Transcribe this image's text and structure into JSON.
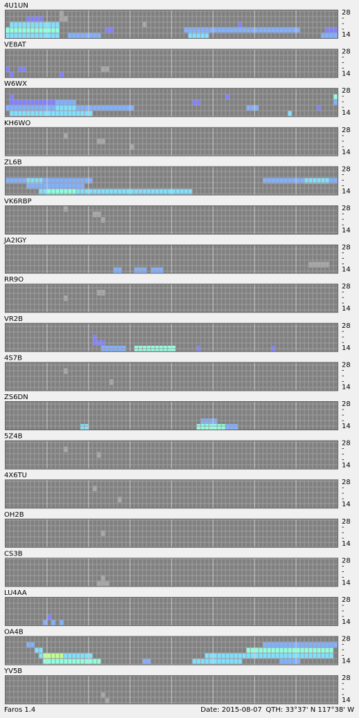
{
  "band_labels": [
    "28",
    "-",
    "-",
    "-",
    "14"
  ],
  "level_colors": [
    "#a8a8a8",
    "#8080ff",
    "#80b0ff",
    "#80e0ff",
    "#90ffe0",
    "#c0ff90"
  ],
  "stations": [
    {
      "name": "4U1UN",
      "runs": [
        [
          2,
          1,
          12,
          3
        ],
        [
          3,
          0,
          12,
          4
        ],
        [
          4,
          0,
          12,
          3
        ],
        [
          1,
          5,
          8,
          1
        ],
        [
          4,
          15,
          22,
          2
        ],
        [
          3,
          24,
          25,
          1
        ],
        [
          3,
          43,
          70,
          2
        ],
        [
          4,
          44,
          48,
          3
        ],
        [
          2,
          56,
          56,
          1
        ],
        [
          4,
          76,
          79,
          2
        ],
        [
          3,
          77,
          79,
          1
        ],
        [
          0,
          13,
          13,
          0
        ],
        [
          1,
          13,
          14,
          0
        ],
        [
          2,
          33,
          33,
          0
        ]
      ]
    },
    {
      "name": "VE8AT",
      "runs": [
        [
          3,
          0,
          0,
          1
        ],
        [
          3,
          3,
          4,
          1
        ],
        [
          4,
          1,
          1,
          1
        ],
        [
          4,
          13,
          13,
          1
        ],
        [
          3,
          23,
          24,
          0
        ]
      ]
    },
    {
      "name": "W6WX",
      "runs": [
        [
          1,
          1,
          1,
          1
        ],
        [
          2,
          1,
          12,
          1
        ],
        [
          3,
          0,
          30,
          2
        ],
        [
          4,
          1,
          20,
          3
        ],
        [
          2,
          12,
          16,
          2
        ],
        [
          3,
          12,
          16,
          3
        ],
        [
          1,
          53,
          53,
          1
        ],
        [
          2,
          45,
          46,
          1
        ],
        [
          3,
          58,
          60,
          2
        ],
        [
          4,
          68,
          68,
          3
        ],
        [
          3,
          75,
          75,
          1
        ],
        [
          1,
          79,
          79,
          4
        ],
        [
          2,
          79,
          79,
          2
        ]
      ]
    },
    {
      "name": "KH6WO",
      "runs": [
        [
          1,
          14,
          14,
          0
        ],
        [
          2,
          22,
          23,
          0
        ],
        [
          3,
          30,
          30,
          0
        ]
      ]
    },
    {
      "name": "ZL6B",
      "runs": [
        [
          2,
          0,
          20,
          2
        ],
        [
          2,
          5,
          8,
          3
        ],
        [
          3,
          5,
          18,
          2
        ],
        [
          4,
          8,
          44,
          3
        ],
        [
          4,
          10,
          16,
          4
        ],
        [
          2,
          62,
          79,
          2
        ],
        [
          2,
          72,
          77,
          3
        ]
      ]
    },
    {
      "name": "VK6RBP",
      "runs": [
        [
          1,
          21,
          22,
          0
        ],
        [
          2,
          23,
          23,
          0
        ],
        [
          0,
          14,
          14,
          0
        ]
      ]
    },
    {
      "name": "JA2IGY",
      "runs": [
        [
          4,
          26,
          27,
          2
        ],
        [
          4,
          31,
          33,
          2
        ],
        [
          4,
          35,
          37,
          2
        ],
        [
          3,
          73,
          77,
          0
        ]
      ]
    },
    {
      "name": "RR9O",
      "runs": [
        [
          1,
          22,
          23,
          0
        ],
        [
          2,
          14,
          14,
          0
        ]
      ]
    },
    {
      "name": "VR2B",
      "runs": [
        [
          2,
          21,
          21,
          1
        ],
        [
          3,
          21,
          22,
          1
        ],
        [
          3,
          23,
          23,
          1
        ],
        [
          4,
          23,
          28,
          2
        ],
        [
          4,
          31,
          40,
          4
        ],
        [
          4,
          46,
          46,
          1
        ],
        [
          4,
          64,
          64,
          1
        ]
      ]
    },
    {
      "name": "4S7B",
      "runs": [
        [
          1,
          14,
          14,
          0
        ],
        [
          3,
          25,
          25,
          0
        ]
      ]
    },
    {
      "name": "ZS6DN",
      "runs": [
        [
          4,
          18,
          19,
          3
        ],
        [
          4,
          46,
          52,
          4
        ],
        [
          3,
          47,
          50,
          2
        ],
        [
          4,
          53,
          55,
          2
        ]
      ]
    },
    {
      "name": "5Z4B",
      "runs": [
        [
          2,
          22,
          22,
          0
        ],
        [
          1,
          14,
          14,
          0
        ]
      ]
    },
    {
      "name": "4X6TU",
      "runs": [
        [
          1,
          21,
          21,
          0
        ],
        [
          3,
          27,
          27,
          0
        ]
      ]
    },
    {
      "name": "OH2B",
      "runs": [
        [
          2,
          23,
          23,
          0
        ]
      ]
    },
    {
      "name": "CS3B",
      "runs": [
        [
          4,
          22,
          24,
          0
        ],
        [
          3,
          23,
          23,
          0
        ]
      ]
    },
    {
      "name": "LU4AA",
      "runs": [
        [
          4,
          9,
          9,
          2
        ],
        [
          4,
          11,
          11,
          2
        ],
        [
          4,
          13,
          13,
          2
        ],
        [
          3,
          10,
          10,
          1
        ]
      ]
    },
    {
      "name": "OA4B",
      "runs": [
        [
          1,
          5,
          6,
          2
        ],
        [
          2,
          7,
          8,
          3
        ],
        [
          3,
          8,
          20,
          3
        ],
        [
          4,
          9,
          22,
          4
        ],
        [
          3,
          9,
          13,
          5
        ],
        [
          2,
          60,
          73,
          2
        ],
        [
          3,
          48,
          78,
          3
        ],
        [
          4,
          45,
          56,
          3
        ],
        [
          1,
          62,
          79,
          2
        ],
        [
          2,
          58,
          78,
          4
        ],
        [
          4,
          33,
          34,
          2
        ],
        [
          4,
          66,
          70,
          2
        ]
      ]
    },
    {
      "name": "YV5B",
      "runs": [
        [
          4,
          24,
          24,
          0
        ],
        [
          3,
          23,
          23,
          0
        ]
      ]
    }
  ],
  "footer": {
    "app": "Faros 1.4",
    "date": "Date: 2015-08-07",
    "qth": "QTH: 33°37' N  117°38' W"
  }
}
